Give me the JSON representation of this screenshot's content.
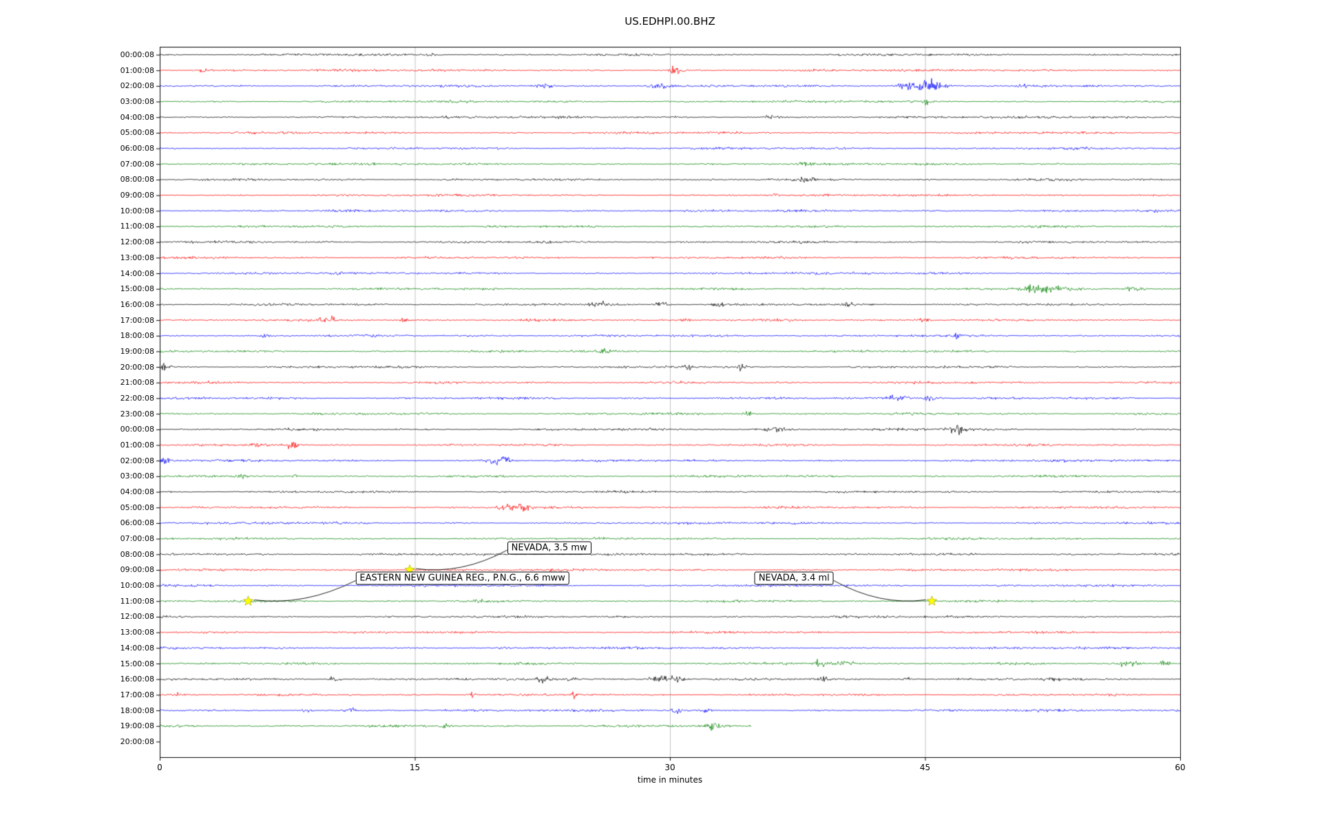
{
  "title": "US.EDHPI.00.BHZ",
  "chart_data": {
    "type": "line",
    "subtype": "seismic-dayplot",
    "title": "US.EDHPI.00.BHZ",
    "xlabel": "time in minutes",
    "xlim": [
      0,
      60
    ],
    "xticks": [
      0,
      15,
      30,
      45,
      60
    ],
    "grid_x_minutes": [
      15,
      30,
      45
    ],
    "grid": true,
    "colors": {
      "grid": "#b0b0b0",
      "axis": "#000000",
      "star_fill": "#ffff00",
      "star_edge": "#9a9a00",
      "annotation_border": "#000000",
      "annotation_bg": "#ffffff"
    },
    "trace_color_cycle": [
      "#000000",
      "#ff0000",
      "#0000ff",
      "#008000"
    ],
    "rows": [
      {
        "label": "00:00:08",
        "color": "#000000",
        "end_minute": 60,
        "bursts": [
          [
            15.9,
            4,
            0.3
          ]
        ]
      },
      {
        "label": "01:00:08",
        "color": "#ff0000",
        "end_minute": 60,
        "bursts": [
          [
            2.5,
            5,
            0.3
          ],
          [
            30.3,
            9,
            0.35
          ]
        ]
      },
      {
        "label": "02:00:08",
        "color": "#0000ff",
        "end_minute": 60,
        "bursts": [
          [
            22.6,
            6,
            0.5
          ],
          [
            29.3,
            6,
            0.6
          ],
          [
            44.4,
            13,
            0.9
          ],
          [
            45.6,
            9,
            0.6
          ],
          [
            50.7,
            4,
            0.3
          ]
        ]
      },
      {
        "label": "03:00:08",
        "color": "#008000",
        "end_minute": 60,
        "bursts": [
          [
            45.1,
            9,
            0.2
          ]
        ]
      },
      {
        "label": "04:00:08",
        "color": "#000000",
        "end_minute": 60,
        "bursts": [
          [
            36,
            3,
            0.5
          ]
        ]
      },
      {
        "label": "05:00:08",
        "color": "#ff0000",
        "end_minute": 60,
        "bursts": []
      },
      {
        "label": "06:00:08",
        "color": "#0000ff",
        "end_minute": 60,
        "bursts": []
      },
      {
        "label": "07:00:08",
        "color": "#008000",
        "end_minute": 60,
        "bursts": [
          [
            38,
            3,
            0.4
          ]
        ]
      },
      {
        "label": "08:00:08",
        "color": "#000000",
        "end_minute": 60,
        "bursts": [
          [
            38,
            3,
            0.6
          ]
        ]
      },
      {
        "label": "09:00:08",
        "color": "#ff0000",
        "end_minute": 60,
        "bursts": [
          [
            36.1,
            6,
            0.2
          ]
        ]
      },
      {
        "label": "10:00:08",
        "color": "#0000ff",
        "end_minute": 60,
        "bursts": []
      },
      {
        "label": "11:00:08",
        "color": "#008000",
        "end_minute": 60,
        "bursts": []
      },
      {
        "label": "12:00:08",
        "color": "#000000",
        "end_minute": 60,
        "bursts": []
      },
      {
        "label": "13:00:08",
        "color": "#ff0000",
        "end_minute": 60,
        "bursts": []
      },
      {
        "label": "14:00:08",
        "color": "#0000ff",
        "end_minute": 60,
        "bursts": []
      },
      {
        "label": "15:00:08",
        "color": "#008000",
        "end_minute": 60,
        "bursts": [
          [
            51.3,
            9,
            0.8
          ],
          [
            52.8,
            6,
            0.9
          ],
          [
            57.2,
            6,
            0.6
          ]
        ]
      },
      {
        "label": "16:00:08",
        "color": "#000000",
        "end_minute": 60,
        "bursts": [
          [
            26,
            5,
            0.5
          ],
          [
            29.5,
            4,
            0.5
          ],
          [
            33,
            4,
            0.4
          ],
          [
            40.5,
            6,
            0.3
          ]
        ]
      },
      {
        "label": "17:00:08",
        "color": "#ff0000",
        "end_minute": 60,
        "bursts": [
          [
            9.9,
            6,
            0.5
          ],
          [
            14.3,
            6,
            0.3
          ],
          [
            31,
            4,
            0.3
          ],
          [
            45,
            6,
            0.4
          ]
        ]
      },
      {
        "label": "18:00:08",
        "color": "#0000ff",
        "end_minute": 60,
        "bursts": [
          [
            6.3,
            5,
            0.3
          ],
          [
            46.9,
            5,
            0.3
          ]
        ]
      },
      {
        "label": "19:00:08",
        "color": "#008000",
        "end_minute": 60,
        "bursts": [
          [
            26.1,
            6,
            0.3
          ]
        ]
      },
      {
        "label": "20:00:08",
        "color": "#000000",
        "end_minute": 60,
        "bursts": [
          [
            0.3,
            9,
            0.3
          ],
          [
            31.1,
            5,
            0.3
          ],
          [
            34.2,
            6,
            0.3
          ]
        ]
      },
      {
        "label": "21:00:08",
        "color": "#ff0000",
        "end_minute": 60,
        "bursts": []
      },
      {
        "label": "22:00:08",
        "color": "#0000ff",
        "end_minute": 60,
        "bursts": [
          [
            43.5,
            7,
            0.7
          ],
          [
            45.3,
            7,
            0.5
          ]
        ]
      },
      {
        "label": "23:00:08",
        "color": "#008000",
        "end_minute": 60,
        "bursts": [
          [
            34.5,
            4,
            0.4
          ]
        ]
      },
      {
        "label": "00:00:08",
        "color": "#000000",
        "end_minute": 60,
        "bursts": [
          [
            36.3,
            7,
            0.8
          ],
          [
            46.8,
            7,
            0.7
          ]
        ]
      },
      {
        "label": "01:00:08",
        "color": "#ff0000",
        "end_minute": 60,
        "bursts": [
          [
            5.9,
            5,
            0.5
          ],
          [
            7.8,
            8,
            0.3
          ]
        ]
      },
      {
        "label": "02:00:08",
        "color": "#0000ff",
        "end_minute": 60,
        "bursts": [
          [
            0.3,
            7,
            0.3
          ],
          [
            20,
            9,
            0.7
          ]
        ]
      },
      {
        "label": "03:00:08",
        "color": "#008000",
        "end_minute": 60,
        "bursts": [
          [
            4.9,
            6,
            0.2
          ],
          [
            7.9,
            5,
            0.2
          ]
        ]
      },
      {
        "label": "04:00:08",
        "color": "#000000",
        "end_minute": 60,
        "bursts": []
      },
      {
        "label": "05:00:08",
        "color": "#ff0000",
        "end_minute": 60,
        "bursts": [
          [
            20.3,
            6,
            0.6
          ],
          [
            21.4,
            10,
            0.3
          ]
        ]
      },
      {
        "label": "06:00:08",
        "color": "#0000ff",
        "end_minute": 60,
        "bursts": []
      },
      {
        "label": "07:00:08",
        "color": "#008000",
        "end_minute": 60,
        "bursts": []
      },
      {
        "label": "08:00:08",
        "color": "#000000",
        "end_minute": 60,
        "bursts": []
      },
      {
        "label": "09:00:08",
        "color": "#ff0000",
        "end_minute": 60,
        "bursts": []
      },
      {
        "label": "10:00:08",
        "color": "#0000ff",
        "end_minute": 60,
        "bursts": []
      },
      {
        "label": "11:00:08",
        "color": "#008000",
        "end_minute": 60,
        "bursts": [
          [
            18.5,
            3,
            0.5
          ]
        ]
      },
      {
        "label": "12:00:08",
        "color": "#000000",
        "end_minute": 60,
        "bursts": []
      },
      {
        "label": "13:00:08",
        "color": "#ff0000",
        "end_minute": 60,
        "bursts": []
      },
      {
        "label": "14:00:08",
        "color": "#0000ff",
        "end_minute": 60,
        "bursts": []
      },
      {
        "label": "15:00:08",
        "color": "#008000",
        "end_minute": 60,
        "bursts": [
          [
            38.9,
            9,
            0.6
          ],
          [
            40.3,
            6,
            0.6
          ],
          [
            57,
            6,
            0.6
          ],
          [
            59,
            5,
            0.4
          ]
        ]
      },
      {
        "label": "16:00:08",
        "color": "#000000",
        "end_minute": 60,
        "bursts": [
          [
            10.3,
            6,
            0.3
          ],
          [
            22.7,
            7,
            0.5
          ],
          [
            24.2,
            5,
            0.4
          ],
          [
            29.4,
            9,
            0.6
          ],
          [
            30.5,
            7,
            0.4
          ],
          [
            39,
            6,
            0.4
          ],
          [
            44,
            5,
            0.4
          ],
          [
            52.5,
            5,
            0.4
          ]
        ]
      },
      {
        "label": "17:00:08",
        "color": "#ff0000",
        "end_minute": 60,
        "bursts": [
          [
            1.1,
            5,
            0.2
          ],
          [
            18.4,
            7,
            0.2
          ],
          [
            24.4,
            7,
            0.2
          ]
        ]
      },
      {
        "label": "18:00:08",
        "color": "#0000ff",
        "end_minute": 60,
        "bursts": [
          [
            8.7,
            5,
            0.3
          ],
          [
            11.2,
            5,
            0.3
          ],
          [
            30.4,
            5,
            0.3
          ],
          [
            32.1,
            4,
            0.3
          ]
        ]
      },
      {
        "label": "19:00:08",
        "color": "#008000",
        "end_minute": 34.8,
        "bursts": [
          [
            16.8,
            4,
            0.3
          ],
          [
            32.6,
            7,
            0.5
          ]
        ]
      },
      {
        "label": "20:00:08",
        "color": null,
        "end_minute": 0,
        "bursts": []
      }
    ],
    "events": [
      {
        "label": "NEVADA, 3.5 mw",
        "row_index": 33,
        "minute": 14.7,
        "label_minute": 22.9,
        "label_row": 31.6
      },
      {
        "label": "EASTERN NEW GUINEA REG., P.N.G., 6.6 mww",
        "row_index": 35,
        "minute": 5.2,
        "label_minute": 17.8,
        "label_row": 33.55
      },
      {
        "label": "NEVADA, 3.4 ml",
        "row_index": 35,
        "minute": 45.4,
        "label_minute": 37.3,
        "label_row": 33.55
      }
    ]
  }
}
